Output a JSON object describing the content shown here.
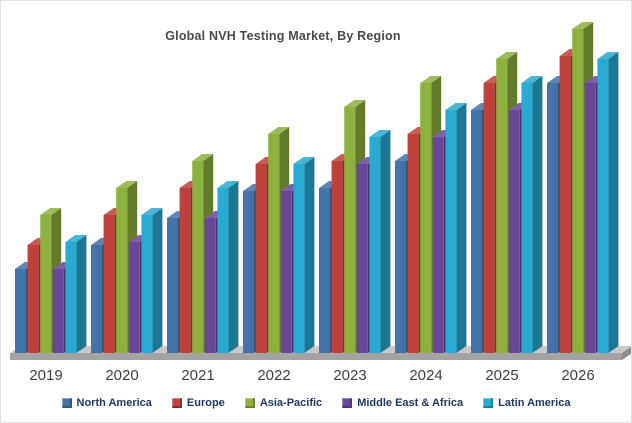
{
  "title": "Global NVH Testing Market, By Region",
  "chart_data": {
    "type": "bar",
    "variant": "3d-clustered-column",
    "title": "Global NVH Testing Market, By Region",
    "xlabel": "",
    "ylabel": "",
    "y_axis_visible": false,
    "grid": false,
    "legend_position": "bottom",
    "values_are_estimates": true,
    "value_scale": "relative units (no y-axis ticks shown in chart)",
    "ylim": [
      0,
      115
    ],
    "categories": [
      "2019",
      "2020",
      "2021",
      "2022",
      "2023",
      "2024",
      "2025",
      "2026"
    ],
    "series": [
      {
        "name": "North America",
        "color": "#4573A7",
        "values": [
          28,
          36,
          45,
          54,
          55,
          64,
          81,
          90
        ]
      },
      {
        "name": "Europe",
        "color": "#C0403B",
        "values": [
          36,
          46,
          55,
          63,
          64,
          73,
          90,
          99
        ]
      },
      {
        "name": "Asia-Pacific",
        "color": "#8DB03E",
        "values": [
          46,
          55,
          64,
          73,
          82,
          90,
          98,
          108
        ]
      },
      {
        "name": "Middle East & Africa",
        "color": "#68479B",
        "values": [
          28,
          37,
          45,
          54,
          63,
          72,
          81,
          90
        ]
      },
      {
        "name": "Latin America",
        "color": "#28AAD3",
        "values": [
          37,
          46,
          55,
          63,
          72,
          81,
          90,
          98
        ]
      }
    ],
    "floor_colors": {
      "top": "#c9c9c9",
      "front": "#a3a3a3",
      "side": "#8e8e8e"
    }
  }
}
